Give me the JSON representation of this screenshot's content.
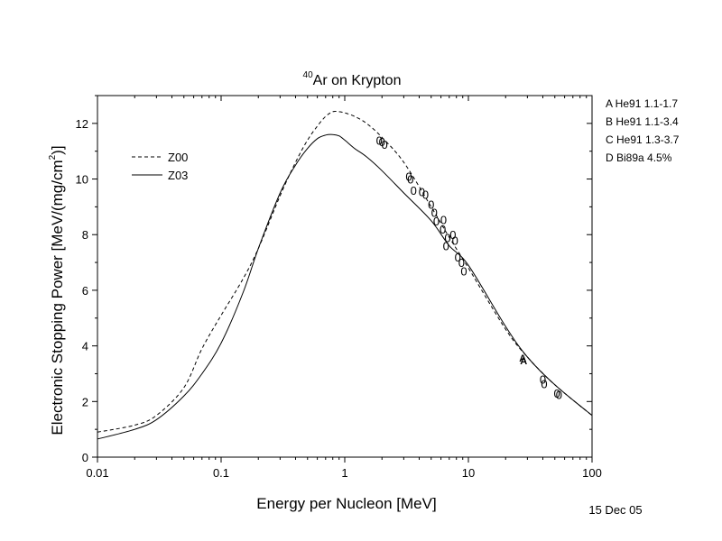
{
  "chart_data": {
    "type": "line",
    "title_sup": "40",
    "title": "Ar on Krypton",
    "xlabel": "Energy per Nucleon [MeV]",
    "ylabel_main": "Electronic Stopping Power [MeV/(mg/cm",
    "ylabel_sup": "2",
    "ylabel_end": ")]",
    "x_scale": "log",
    "xlim": [
      0.01,
      100
    ],
    "ylim": [
      0,
      13
    ],
    "x_ticks": [
      {
        "v": 0.01,
        "label": "0.01"
      },
      {
        "v": 0.1,
        "label": "0.1"
      },
      {
        "v": 1,
        "label": "1"
      },
      {
        "v": 10,
        "label": "10"
      },
      {
        "v": 100,
        "label": "100"
      }
    ],
    "y_ticks": [
      {
        "v": 0,
        "label": "0"
      },
      {
        "v": 2,
        "label": "2"
      },
      {
        "v": 4,
        "label": "4"
      },
      {
        "v": 6,
        "label": "6"
      },
      {
        "v": 8,
        "label": "8"
      },
      {
        "v": 10,
        "label": "10"
      },
      {
        "v": 12,
        "label": "12"
      }
    ],
    "grid": false,
    "legend_position": "upper-left",
    "series": [
      {
        "name": "Z00",
        "style": "dashed",
        "x": [
          0.01,
          0.02,
          0.03,
          0.05,
          0.07,
          0.1,
          0.15,
          0.2,
          0.3,
          0.4,
          0.5,
          0.6,
          0.7,
          0.8,
          0.9,
          1.0,
          1.2,
          1.5,
          2,
          3,
          5,
          7,
          10,
          20,
          30,
          50,
          100
        ],
        "y": [
          0.9,
          1.15,
          1.5,
          2.5,
          3.9,
          5.1,
          6.4,
          7.5,
          9.4,
          10.6,
          11.4,
          11.9,
          12.25,
          12.42,
          12.42,
          12.38,
          12.25,
          12.0,
          11.5,
          10.6,
          9.0,
          7.9,
          6.8,
          4.6,
          3.6,
          2.6,
          1.5
        ]
      },
      {
        "name": "Z03",
        "style": "solid",
        "x": [
          0.01,
          0.02,
          0.03,
          0.05,
          0.07,
          0.1,
          0.15,
          0.2,
          0.3,
          0.4,
          0.5,
          0.6,
          0.7,
          0.8,
          0.9,
          1.0,
          1.2,
          1.5,
          2,
          3,
          5,
          7,
          10,
          20,
          30,
          50,
          100
        ],
        "y": [
          0.65,
          1.0,
          1.35,
          2.2,
          3.0,
          4.1,
          5.9,
          7.5,
          9.5,
          10.5,
          11.1,
          11.45,
          11.58,
          11.6,
          11.55,
          11.4,
          11.1,
          10.8,
          10.3,
          9.5,
          8.5,
          7.6,
          6.9,
          4.7,
          3.6,
          2.6,
          1.5
        ]
      }
    ],
    "markers": [
      {
        "label": "0",
        "points": [
          [
            1.9,
            11.4
          ],
          [
            2.0,
            11.35
          ],
          [
            2.1,
            11.25
          ],
          [
            3.3,
            10.1
          ],
          [
            3.4,
            10.0
          ],
          [
            3.6,
            9.6
          ],
          [
            4.2,
            9.55
          ],
          [
            4.5,
            9.45
          ],
          [
            5.0,
            9.1
          ],
          [
            5.3,
            8.8
          ],
          [
            5.5,
            8.5
          ],
          [
            6.2,
            8.2
          ],
          [
            6.3,
            8.55
          ],
          [
            6.6,
            7.6
          ],
          [
            6.8,
            7.9
          ],
          [
            7.5,
            8.0
          ],
          [
            7.8,
            7.8
          ],
          [
            8.2,
            7.2
          ],
          [
            8.8,
            7.0
          ],
          [
            9.2,
            6.7
          ],
          [
            40,
            2.8
          ],
          [
            41,
            2.65
          ],
          [
            52,
            2.3
          ],
          [
            54,
            2.25
          ]
        ]
      },
      {
        "label": "A",
        "points": [
          [
            27.5,
            3.6
          ],
          [
            28,
            3.5
          ]
        ]
      }
    ],
    "side_legend": [
      {
        "code": "A",
        "ref": "He91",
        "range": "1.1-1.7"
      },
      {
        "code": "B",
        "ref": "He91",
        "range": "1.1-3.4"
      },
      {
        "code": "C",
        "ref": "He91",
        "range": "1.3-3.7"
      },
      {
        "code": "D",
        "ref": "Bi89a",
        "range": "4.5%"
      }
    ],
    "date": "15 Dec 05"
  }
}
